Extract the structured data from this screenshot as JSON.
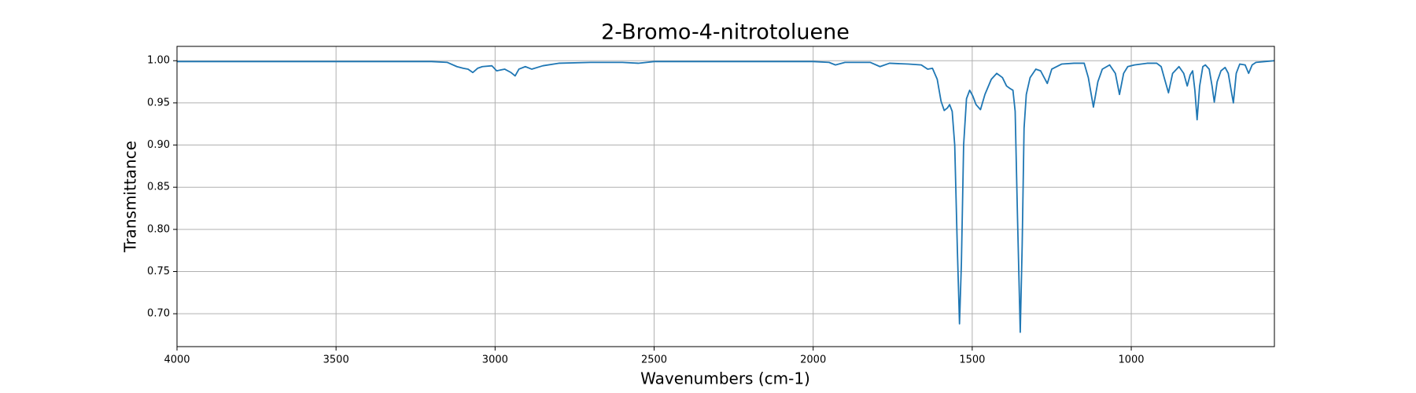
{
  "chart_data": {
    "type": "line",
    "title": "2-Bromo-4-nitrotoluene",
    "x_label": "Wavenumbers (cm-1)",
    "y_label": "Transmittance",
    "x": [
      4000,
      3800,
      3600,
      3400,
      3200,
      3150,
      3120,
      3100,
      3085,
      3070,
      3055,
      3040,
      3010,
      2995,
      2970,
      2950,
      2937,
      2925,
      2905,
      2885,
      2850,
      2800,
      2700,
      2600,
      2550,
      2500,
      2300,
      2100,
      2000,
      1950,
      1930,
      1900,
      1820,
      1790,
      1760,
      1700,
      1660,
      1640,
      1625,
      1610,
      1598,
      1588,
      1578,
      1571,
      1563,
      1555,
      1547,
      1540,
      1534,
      1527,
      1518,
      1508,
      1498,
      1488,
      1474,
      1460,
      1440,
      1423,
      1405,
      1392,
      1381,
      1372,
      1365,
      1358,
      1349,
      1343,
      1337,
      1330,
      1318,
      1300,
      1285,
      1264,
      1250,
      1219,
      1180,
      1148,
      1135,
      1119,
      1105,
      1091,
      1068,
      1050,
      1037,
      1024,
      1011,
      990,
      950,
      920,
      906,
      895,
      883,
      870,
      850,
      835,
      824,
      815,
      807,
      800,
      793,
      785,
      775,
      767,
      755,
      746,
      739,
      730,
      718,
      705,
      695,
      686,
      679,
      670,
      659,
      642,
      631,
      620,
      608,
      580,
      550
    ],
    "series": [
      {
        "name": "2-Bromo-4-nitrotoluene",
        "color": "#1f77b4",
        "values": [
          0.999,
          0.999,
          0.999,
          0.999,
          0.999,
          0.998,
          0.993,
          0.991,
          0.99,
          0.986,
          0.991,
          0.993,
          0.994,
          0.988,
          0.99,
          0.986,
          0.982,
          0.99,
          0.993,
          0.99,
          0.994,
          0.997,
          0.998,
          0.998,
          0.997,
          0.999,
          0.999,
          0.999,
          0.999,
          0.998,
          0.995,
          0.998,
          0.998,
          0.993,
          0.997,
          0.996,
          0.995,
          0.99,
          0.991,
          0.978,
          0.952,
          0.941,
          0.944,
          0.948,
          0.94,
          0.9,
          0.78,
          0.688,
          0.76,
          0.9,
          0.955,
          0.965,
          0.958,
          0.948,
          0.942,
          0.96,
          0.978,
          0.985,
          0.98,
          0.97,
          0.967,
          0.965,
          0.94,
          0.82,
          0.678,
          0.78,
          0.92,
          0.96,
          0.98,
          0.99,
          0.988,
          0.973,
          0.99,
          0.996,
          0.997,
          0.997,
          0.98,
          0.945,
          0.975,
          0.99,
          0.995,
          0.985,
          0.96,
          0.985,
          0.993,
          0.995,
          0.997,
          0.997,
          0.993,
          0.978,
          0.962,
          0.985,
          0.993,
          0.985,
          0.97,
          0.983,
          0.988,
          0.965,
          0.93,
          0.97,
          0.993,
          0.995,
          0.99,
          0.97,
          0.951,
          0.975,
          0.988,
          0.992,
          0.985,
          0.965,
          0.95,
          0.985,
          0.996,
          0.995,
          0.985,
          0.995,
          0.998,
          0.999,
          1.0
        ]
      }
    ],
    "xlim": [
      4000,
      550
    ],
    "ylim": [
      0.661,
      1.017
    ],
    "xticks": [
      4000,
      3500,
      3000,
      2500,
      2000,
      1500,
      1000
    ],
    "yticks": [
      {
        "value": 0.7,
        "label": "0.70"
      },
      0.75,
      {
        "value": 0.8,
        "label": "0.80"
      },
      0.85,
      {
        "value": 0.9,
        "label": "0.90"
      },
      0.95,
      {
        "value": 1,
        "label": "1.00"
      }
    ],
    "grid": true
  }
}
